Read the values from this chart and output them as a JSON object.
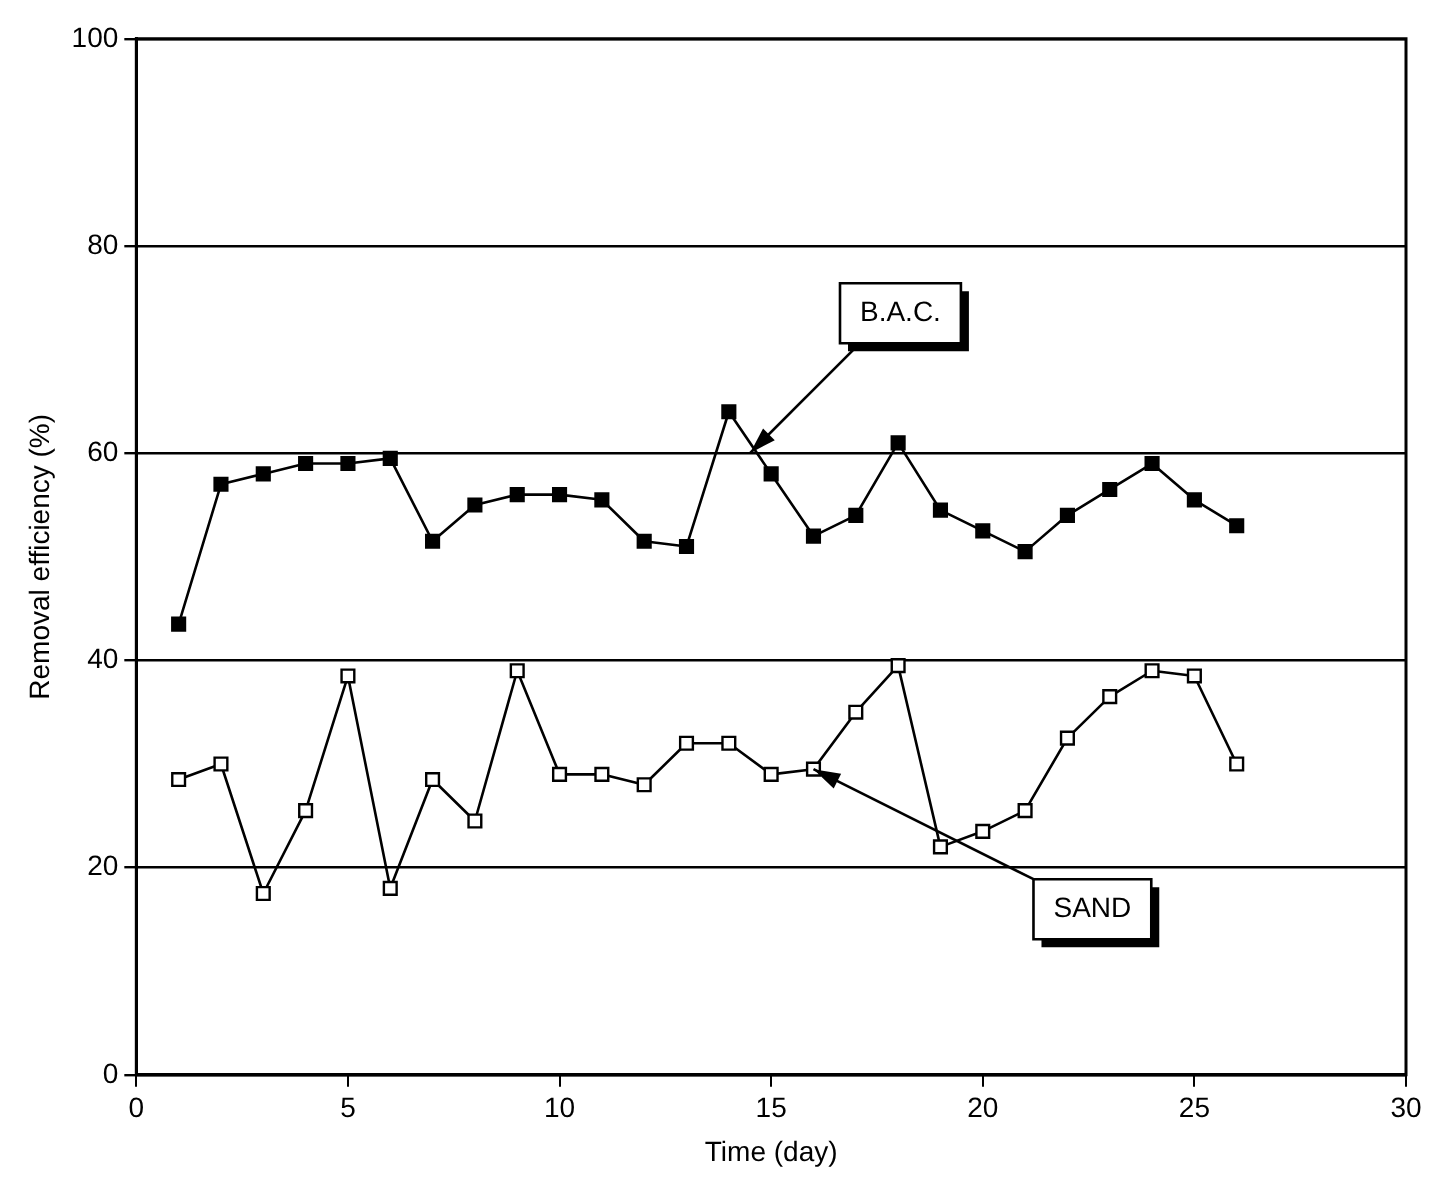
{
  "chart_data": {
    "type": "line",
    "xlabel": "Time (day)",
    "ylabel": "Removal efficiency (%)",
    "x": [
      1,
      2,
      3,
      4,
      5,
      6,
      7,
      8,
      9,
      10,
      11,
      12,
      13,
      14,
      15,
      16,
      17,
      18,
      19,
      20,
      21,
      22,
      23,
      24,
      25,
      26
    ],
    "series": [
      {
        "color": "#000000",
        "values": [
          43.5,
          57,
          58,
          59,
          59,
          59.5,
          51.5,
          55,
          56,
          56,
          55.5,
          51.5,
          51,
          64,
          58,
          52,
          54,
          61,
          54.5,
          52.5,
          50.5,
          54,
          56.5,
          59,
          55.5,
          53
        ]
      },
      {
        "color": "#000000",
        "values": [
          28.5,
          30,
          17.5,
          25.5,
          38.5,
          18,
          28.5,
          24.5,
          39,
          29,
          29,
          28,
          32,
          32,
          29,
          29.5,
          35,
          39.5,
          22,
          23.5,
          25.5,
          32.5,
          36.5,
          39,
          38.5,
          30
        ]
      }
    ],
    "xlim": [
      0,
      30
    ],
    "xticks": [
      0,
      5,
      10,
      15,
      20,
      25,
      30
    ],
    "ylim": [
      0,
      100
    ],
    "yticks": [
      0,
      20,
      40,
      60,
      80,
      100
    ],
    "grid": "y",
    "marker": "square",
    "line_style": "solid",
    "annotations": [
      {
        "text": "B.A.C.",
        "x": 14.5,
        "y": 60
      },
      {
        "text": "SAND",
        "x": 16,
        "y": 29.5
      }
    ]
  }
}
